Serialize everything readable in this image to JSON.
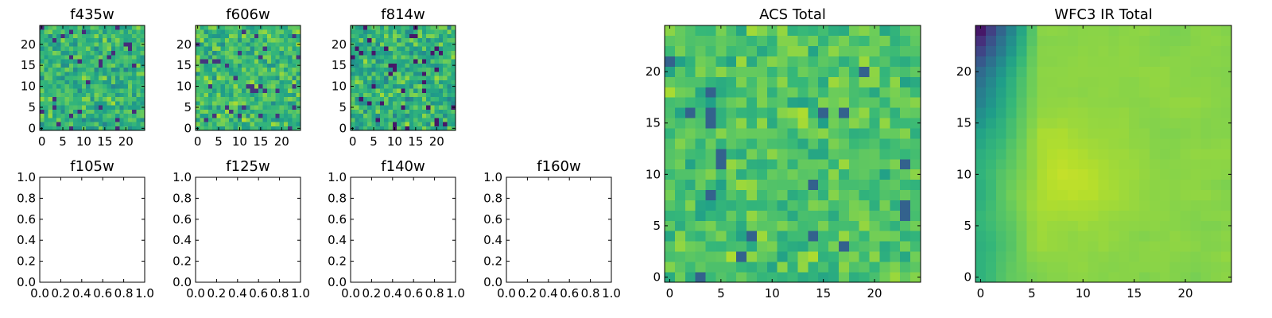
{
  "chart_data": [
    {
      "type": "heatmap",
      "title": "f435w",
      "xlim": [
        -0.5,
        24.5
      ],
      "ylim": [
        -0.5,
        24.5
      ],
      "xticks": [
        0,
        5,
        10,
        15,
        20
      ],
      "yticks": [
        0,
        5,
        10,
        15,
        20
      ],
      "xtick_labels": [
        "0",
        "5",
        "10",
        "15",
        "20"
      ],
      "ytick_labels": [
        "0",
        "5",
        "10",
        "15",
        "20"
      ],
      "grid_size": [
        25,
        25
      ],
      "colormap": "viridis",
      "value_mean": 0.65,
      "value_spread": 0.22,
      "seed": 11,
      "smoothness": 0
    },
    {
      "type": "heatmap",
      "title": "f606w",
      "xlim": [
        -0.5,
        24.5
      ],
      "ylim": [
        -0.5,
        24.5
      ],
      "xticks": [
        0,
        5,
        10,
        15,
        20
      ],
      "yticks": [
        0,
        5,
        10,
        15,
        20
      ],
      "xtick_labels": [
        "0",
        "5",
        "10",
        "15",
        "20"
      ],
      "ytick_labels": [
        "0",
        "5",
        "10",
        "15",
        "20"
      ],
      "grid_size": [
        25,
        25
      ],
      "colormap": "viridis",
      "value_mean": 0.68,
      "value_spread": 0.22,
      "seed": 23,
      "smoothness": 0
    },
    {
      "type": "heatmap",
      "title": "f814w",
      "xlim": [
        -0.5,
        24.5
      ],
      "ylim": [
        -0.5,
        24.5
      ],
      "xticks": [
        0,
        5,
        10,
        15,
        20
      ],
      "yticks": [
        0,
        5,
        10,
        15,
        20
      ],
      "xtick_labels": [
        "0",
        "5",
        "10",
        "15",
        "20"
      ],
      "ytick_labels": [
        "0",
        "5",
        "10",
        "15",
        "20"
      ],
      "grid_size": [
        25,
        25
      ],
      "colormap": "viridis",
      "value_mean": 0.64,
      "value_spread": 0.24,
      "seed": 37,
      "smoothness": 0
    },
    {
      "type": "scatter",
      "title": "f105w",
      "xlim": [
        0,
        1
      ],
      "ylim": [
        0,
        1
      ],
      "xticks": [
        0,
        0.2,
        0.4,
        0.6,
        0.8,
        1.0
      ],
      "yticks": [
        0,
        0.2,
        0.4,
        0.6,
        0.8,
        1.0
      ],
      "xtick_labels": [
        "0.0",
        "0.2",
        "0.4",
        "0.6",
        "0.8",
        "1.0"
      ],
      "ytick_labels": [
        "0.0",
        "0.2",
        "0.4",
        "0.6",
        "0.8",
        "1.0"
      ],
      "points": []
    },
    {
      "type": "scatter",
      "title": "f125w",
      "xlim": [
        0,
        1
      ],
      "ylim": [
        0,
        1
      ],
      "xticks": [
        0,
        0.2,
        0.4,
        0.6,
        0.8,
        1.0
      ],
      "yticks": [
        0,
        0.2,
        0.4,
        0.6,
        0.8,
        1.0
      ],
      "xtick_labels": [
        "0.0",
        "0.2",
        "0.4",
        "0.6",
        "0.8",
        "1.0"
      ],
      "ytick_labels": [
        "0.0",
        "0.2",
        "0.4",
        "0.6",
        "0.8",
        "1.0"
      ],
      "points": []
    },
    {
      "type": "scatter",
      "title": "f140w",
      "xlim": [
        0,
        1
      ],
      "ylim": [
        0,
        1
      ],
      "xticks": [
        0,
        0.2,
        0.4,
        0.6,
        0.8,
        1.0
      ],
      "yticks": [
        0,
        0.2,
        0.4,
        0.6,
        0.8,
        1.0
      ],
      "xtick_labels": [
        "0.0",
        "0.2",
        "0.4",
        "0.6",
        "0.8",
        "1.0"
      ],
      "ytick_labels": [
        "0.0",
        "0.2",
        "0.4",
        "0.6",
        "0.8",
        "1.0"
      ],
      "points": []
    },
    {
      "type": "scatter",
      "title": "f160w",
      "xlim": [
        0,
        1
      ],
      "ylim": [
        0,
        1
      ],
      "xticks": [
        0,
        0.2,
        0.4,
        0.6,
        0.8,
        1.0
      ],
      "yticks": [
        0,
        0.2,
        0.4,
        0.6,
        0.8,
        1.0
      ],
      "xtick_labels": [
        "0.0",
        "0.2",
        "0.4",
        "0.6",
        "0.8",
        "1.0"
      ],
      "ytick_labels": [
        "0.0",
        "0.2",
        "0.4",
        "0.6",
        "0.8",
        "1.0"
      ],
      "points": []
    },
    {
      "type": "heatmap",
      "title": "ACS Total",
      "xlim": [
        -0.5,
        24.5
      ],
      "ylim": [
        -0.5,
        24.5
      ],
      "xticks": [
        0,
        5,
        10,
        15,
        20
      ],
      "yticks": [
        0,
        5,
        10,
        15,
        20
      ],
      "xtick_labels": [
        "0",
        "5",
        "10",
        "15",
        "20"
      ],
      "ytick_labels": [
        "0",
        "5",
        "10",
        "15",
        "20"
      ],
      "grid_size": [
        25,
        25
      ],
      "colormap": "viridis",
      "value_mean": 0.72,
      "value_spread": 0.17,
      "seed": 53,
      "smoothness": 0
    },
    {
      "type": "heatmap",
      "title": "WFC3 IR Total",
      "xlim": [
        -0.5,
        24.5
      ],
      "ylim": [
        -0.5,
        24.5
      ],
      "xticks": [
        0,
        5,
        10,
        15,
        20
      ],
      "yticks": [
        0,
        5,
        10,
        15,
        20
      ],
      "xtick_labels": [
        "0",
        "5",
        "10",
        "15",
        "20"
      ],
      "ytick_labels": [
        "0",
        "5",
        "10",
        "15",
        "20"
      ],
      "grid_size": [
        25,
        25
      ],
      "colormap": "viridis",
      "value_mean": 0.82,
      "value_spread": 0.06,
      "seed": 71,
      "smoothness": 1
    }
  ]
}
